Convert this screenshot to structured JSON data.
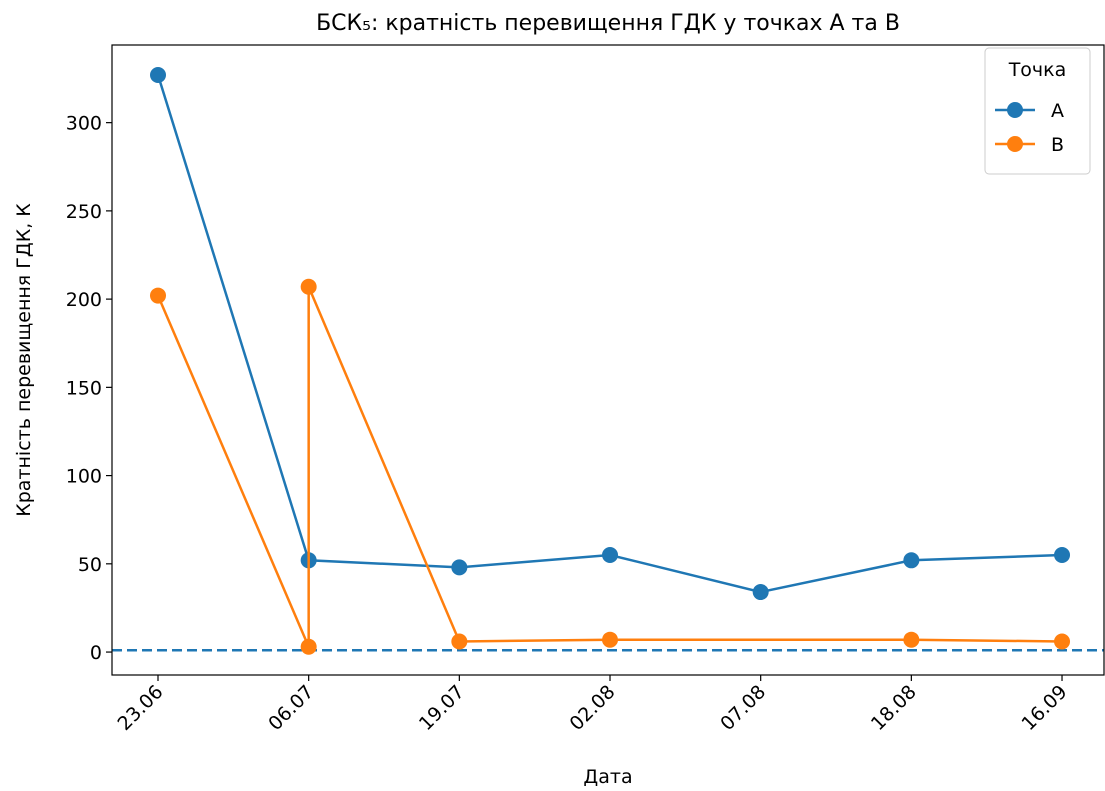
{
  "chart_data": {
    "type": "line",
    "title": "БСК₅: кратність перевищення ГДК у точках А та В",
    "x_label": "Дата",
    "y_label": "Кратність перевищення ГДК, К",
    "categories": [
      "23.06",
      "06.07",
      "19.07",
      "02.08",
      "07.08",
      "18.08",
      "16.09"
    ],
    "series": [
      {
        "name": "A",
        "color": "#1f77b4",
        "x": [
          "23.06",
          "06.07",
          "19.07",
          "02.08",
          "07.08",
          "18.08",
          "16.09"
        ],
        "values": [
          327,
          52,
          48,
          55,
          34,
          52,
          55
        ]
      },
      {
        "name": "B",
        "color": "#ff7f0e",
        "x": [
          "23.06",
          "06.07",
          "06.07",
          "19.07",
          "02.08",
          "18.08",
          "16.09"
        ],
        "values": [
          202,
          3,
          207,
          6,
          7,
          7,
          6
        ]
      }
    ],
    "hline": {
      "value": 1,
      "color": "#1f77b4"
    },
    "ylim": [
      -13,
      344
    ],
    "yticks": [
      0,
      50,
      100,
      150,
      200,
      250,
      300
    ],
    "legend": {
      "title": "Точка",
      "position": "upper right"
    }
  }
}
